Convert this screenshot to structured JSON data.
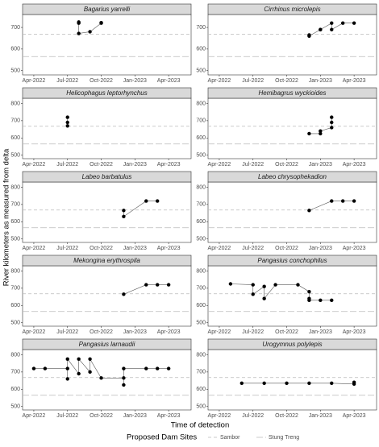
{
  "ylabel": "River kilometers as measured from delta",
  "xlabel": "Time of detection",
  "legend": {
    "title": "Proposed Dam Sites"
  },
  "reference_lines": [
    {
      "name": "Sambor",
      "value": 668,
      "color": "#bbbbbb",
      "dash": "4,3"
    },
    {
      "name": "Stung Treng",
      "value": 565,
      "color": "#bbbbbb",
      "dash": "8,3"
    }
  ],
  "chart_data": [
    {
      "type": "scatter",
      "title": "Bagarius yarrelli",
      "x": [
        "2022-08",
        "2022-08",
        "2022-08",
        "2022-09",
        "2022-10",
        "2022-10"
      ],
      "series": [
        {
          "color": "#000000",
          "values": [
            725,
            720,
            672,
            680,
            720,
            722
          ]
        }
      ],
      "xlim": [
        "2022-03",
        "2023-06"
      ],
      "ylim": [
        480,
        760
      ],
      "yticks": [
        500,
        600,
        700
      ],
      "xticks": [
        {
          "value": "2022-04",
          "label": "Apr-2022"
        },
        {
          "value": "2022-07",
          "label": "Jul-2022"
        },
        {
          "value": "2022-10",
          "label": "Oct-2022"
        },
        {
          "value": "2023-01",
          "label": "Jan-2023"
        },
        {
          "value": "2023-04",
          "label": "Apr-2023"
        }
      ]
    },
    {
      "type": "scatter",
      "title": "Cirrhinus microlepis",
      "x": [
        "2022-12",
        "2022-12",
        "2023-01",
        "2023-01",
        "2023-02",
        "2023-02",
        "2023-03",
        "2023-04"
      ],
      "series": [
        {
          "color": "#000000",
          "values": [
            665,
            660,
            690,
            690,
            720,
            690,
            720,
            720
          ]
        }
      ],
      "xlim": [
        "2022-03",
        "2023-06"
      ],
      "ylim": [
        480,
        760
      ],
      "yticks": [
        500,
        600,
        700
      ],
      "xticks": [
        {
          "value": "2022-04",
          "label": "Apr-2022"
        },
        {
          "value": "2022-07",
          "label": "Jul-2022"
        },
        {
          "value": "2022-10",
          "label": "Oct-2022"
        },
        {
          "value": "2023-01",
          "label": "Jan-2023"
        },
        {
          "value": "2023-04",
          "label": "Apr-2023"
        }
      ]
    },
    {
      "type": "scatter",
      "title": "Helicophagus leptorhynchus",
      "x": [
        "2022-07",
        "2022-07",
        "2022-07"
      ],
      "series": [
        {
          "color": "#000000",
          "values": [
            720,
            690,
            670
          ]
        }
      ],
      "xlim": [
        "2022-03",
        "2023-06"
      ],
      "ylim": [
        480,
        830
      ],
      "yticks": [
        500,
        600,
        700,
        800
      ],
      "xticks": [
        {
          "value": "2022-04",
          "label": "Apr-2022"
        },
        {
          "value": "2022-07",
          "label": "Jul-2022"
        },
        {
          "value": "2022-10",
          "label": "Oct-2022"
        },
        {
          "value": "2023-01",
          "label": "Jan-2023"
        },
        {
          "value": "2023-04",
          "label": "Apr-2023"
        }
      ]
    },
    {
      "type": "scatter",
      "title": "Hemibagrus wyckioides",
      "x": [
        "2022-12",
        "2023-01",
        "2023-01",
        "2023-02",
        "2023-02",
        "2023-02"
      ],
      "series": [
        {
          "color": "#000000",
          "values": [
            625,
            625,
            640,
            660,
            690,
            720
          ]
        }
      ],
      "xlim": [
        "2022-03",
        "2023-06"
      ],
      "ylim": [
        480,
        830
      ],
      "yticks": [
        500,
        600,
        700,
        800
      ],
      "xticks": [
        {
          "value": "2022-04",
          "label": "Apr-2022"
        },
        {
          "value": "2022-07",
          "label": "Jul-2022"
        },
        {
          "value": "2022-10",
          "label": "Oct-2022"
        },
        {
          "value": "2023-01",
          "label": "Jan-2023"
        },
        {
          "value": "2023-04",
          "label": "Apr-2023"
        }
      ]
    },
    {
      "type": "scatter",
      "title": "Labeo barbatulus",
      "x": [
        "2022-12",
        "2022-12",
        "2023-02",
        "2023-03"
      ],
      "series": [
        {
          "color": "#000000",
          "values": [
            665,
            630,
            720,
            720
          ]
        }
      ],
      "xlim": [
        "2022-03",
        "2023-06"
      ],
      "ylim": [
        480,
        830
      ],
      "yticks": [
        500,
        600,
        700,
        800
      ],
      "xticks": [
        {
          "value": "2022-04",
          "label": "Apr-2022"
        },
        {
          "value": "2022-07",
          "label": "Jul-2022"
        },
        {
          "value": "2022-10",
          "label": "Oct-2022"
        },
        {
          "value": "2023-01",
          "label": "Jan-2023"
        },
        {
          "value": "2023-04",
          "label": "Apr-2023"
        }
      ]
    },
    {
      "type": "scatter",
      "title": "Labeo chrysophekadion",
      "x": [
        "2022-12",
        "2023-02",
        "2023-03",
        "2023-04"
      ],
      "series": [
        {
          "color": "#000000",
          "values": [
            665,
            720,
            720,
            720
          ]
        }
      ],
      "xlim": [
        "2022-03",
        "2023-06"
      ],
      "ylim": [
        480,
        830
      ],
      "yticks": [
        500,
        600,
        700,
        800
      ],
      "xticks": [
        {
          "value": "2022-04",
          "label": "Apr-2022"
        },
        {
          "value": "2022-07",
          "label": "Jul-2022"
        },
        {
          "value": "2022-10",
          "label": "Oct-2022"
        },
        {
          "value": "2023-01",
          "label": "Jan-2023"
        },
        {
          "value": "2023-04",
          "label": "Apr-2023"
        }
      ]
    },
    {
      "type": "scatter",
      "title": "Mekongina erythrospila",
      "x": [
        "2022-12",
        "2023-02",
        "2023-03",
        "2023-04"
      ],
      "series": [
        {
          "color": "#000000",
          "values": [
            665,
            720,
            720,
            720
          ]
        }
      ],
      "xlim": [
        "2022-03",
        "2023-06"
      ],
      "ylim": [
        480,
        830
      ],
      "yticks": [
        500,
        600,
        700,
        800
      ],
      "xticks": [
        {
          "value": "2022-04",
          "label": "Apr-2022"
        },
        {
          "value": "2022-07",
          "label": "Jul-2022"
        },
        {
          "value": "2022-10",
          "label": "Oct-2022"
        },
        {
          "value": "2023-01",
          "label": "Jan-2023"
        },
        {
          "value": "2023-04",
          "label": "Apr-2023"
        }
      ]
    },
    {
      "type": "scatter",
      "title": "Pangasius conchophilus",
      "x": [
        "2022-05",
        "2022-07",
        "2022-07",
        "2022-08",
        "2022-08",
        "2022-09",
        "2022-11",
        "2022-12",
        "2022-12",
        "2022-12",
        "2023-01",
        "2023-02"
      ],
      "series": [
        {
          "color": "#000000",
          "values": [
            725,
            720,
            665,
            710,
            640,
            720,
            720,
            680,
            640,
            630,
            630,
            630
          ]
        }
      ],
      "xlim": [
        "2022-03",
        "2023-06"
      ],
      "ylim": [
        480,
        830
      ],
      "yticks": [
        500,
        600,
        700,
        800
      ],
      "xticks": [
        {
          "value": "2022-04",
          "label": "Apr-2022"
        },
        {
          "value": "2022-07",
          "label": "Jul-2022"
        },
        {
          "value": "2022-10",
          "label": "Oct-2022"
        },
        {
          "value": "2023-01",
          "label": "Jan-2023"
        },
        {
          "value": "2023-04",
          "label": "Apr-2023"
        }
      ]
    },
    {
      "type": "scatter",
      "title": "Pangasius larnaudii",
      "x": [
        "2022-04",
        "2022-05",
        "2022-07",
        "2022-07",
        "2022-07",
        "2022-08",
        "2022-08",
        "2022-09",
        "2022-09",
        "2022-10",
        "2022-12",
        "2022-12",
        "2022-12",
        "2023-02",
        "2023-03",
        "2023-04"
      ],
      "series": [
        {
          "color": "#000000",
          "values": [
            720,
            720,
            720,
            660,
            775,
            690,
            775,
            700,
            775,
            665,
            665,
            625,
            720,
            720,
            720,
            720
          ]
        }
      ],
      "xlim": [
        "2022-03",
        "2023-06"
      ],
      "ylim": [
        480,
        830
      ],
      "yticks": [
        500,
        600,
        700,
        800
      ],
      "xticks": [
        {
          "value": "2022-04",
          "label": "Apr-2022"
        },
        {
          "value": "2022-07",
          "label": "Jul-2022"
        },
        {
          "value": "2022-10",
          "label": "Oct-2022"
        },
        {
          "value": "2023-01",
          "label": "Jan-2023"
        },
        {
          "value": "2023-04",
          "label": "Apr-2023"
        }
      ]
    },
    {
      "type": "scatter",
      "title": "Urogymnus polylepis",
      "x": [
        "2022-06",
        "2022-08",
        "2022-10",
        "2022-12",
        "2023-02",
        "2023-04",
        "2023-04"
      ],
      "series": [
        {
          "color": "#000000",
          "values": [
            635,
            635,
            635,
            635,
            635,
            630,
            640
          ]
        }
      ],
      "xlim": [
        "2022-03",
        "2023-06"
      ],
      "ylim": [
        480,
        830
      ],
      "yticks": [
        500,
        600,
        700,
        800
      ],
      "xticks": [
        {
          "value": "2022-04",
          "label": "Apr-2022"
        },
        {
          "value": "2022-07",
          "label": "Jul-2022"
        },
        {
          "value": "2022-10",
          "label": "Oct-2022"
        },
        {
          "value": "2023-01",
          "label": "Jan-2023"
        },
        {
          "value": "2023-04",
          "label": "Apr-2023"
        }
      ]
    }
  ]
}
